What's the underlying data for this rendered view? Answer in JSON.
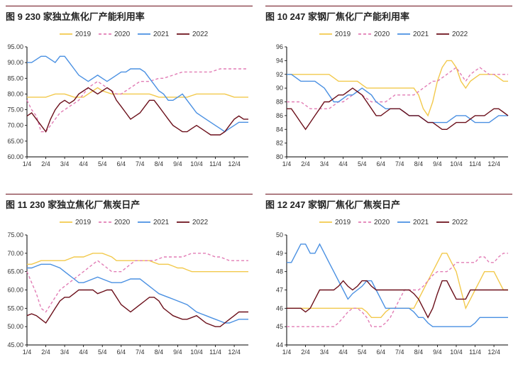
{
  "layout": {
    "container_width": 730,
    "container_height": 541,
    "cols": 2,
    "rows": 2,
    "panel_border_color": "#6b0f1a",
    "title_color": "#222222",
    "title_fontsize": 13,
    "title_fontweight": "bold"
  },
  "legend": {
    "items": [
      {
        "label": "2019",
        "color": "#f2c94c",
        "dash": ""
      },
      {
        "label": "2020",
        "color": "#e27db5",
        "dash": "4 3"
      },
      {
        "label": "2021",
        "color": "#4a90e2",
        "dash": ""
      },
      {
        "label": "2022",
        "color": "#6b0f1a",
        "dash": ""
      }
    ],
    "fontsize": 10,
    "font_color": "#333333"
  },
  "axis_style": {
    "axis_color": "#000000",
    "tick_color": "#000000",
    "tick_fontsize": 9,
    "tick_font_color": "#333333",
    "plot_border": "none",
    "line_width": 1.4
  },
  "x_axis_common": {
    "labels": [
      "1/4",
      "2/4",
      "3/4",
      "4/4",
      "5/4",
      "6/4",
      "7/4",
      "8/4",
      "9/4",
      "10/4",
      "11/4",
      "12/4"
    ],
    "n_points": 48
  },
  "charts": [
    {
      "id": "c9",
      "title": "图 9 230 家独立焦化厂产能利用率",
      "type": "line",
      "ylim": [
        60,
        95
      ],
      "ytick_step": 5,
      "series": {
        "2019": [
          79,
          79,
          79,
          79,
          79,
          79.5,
          80,
          80,
          80,
          79.5,
          79,
          79,
          79,
          80,
          81,
          82,
          81,
          80.5,
          80,
          80,
          80,
          80,
          80,
          80,
          80,
          80,
          80,
          79.5,
          79,
          79,
          79,
          79,
          79,
          79,
          79,
          79.5,
          80,
          80,
          80,
          80,
          80,
          80,
          80,
          79.5,
          79,
          79,
          79,
          79
        ],
        "2020": [
          78,
          75,
          73,
          68,
          68,
          70,
          72,
          74,
          75,
          76,
          77,
          78,
          80,
          82,
          83,
          84,
          83,
          82,
          81,
          80,
          80,
          81,
          82,
          83,
          84,
          84,
          84,
          84.5,
          85,
          85,
          85.5,
          86,
          86.5,
          87,
          87,
          87,
          87,
          87,
          87,
          87,
          87.5,
          88,
          88,
          88,
          88,
          88,
          88,
          88
        ],
        "2021": [
          90,
          90,
          91,
          92,
          92,
          91,
          90,
          92,
          92,
          90,
          88,
          86,
          85,
          84,
          85,
          86,
          85,
          84,
          85,
          86,
          87,
          87,
          88,
          88,
          88,
          87,
          85,
          83,
          81,
          80,
          78,
          78,
          79,
          80,
          78,
          76,
          74,
          73,
          72,
          71,
          70,
          69,
          68,
          69,
          70,
          71,
          71,
          71
        ],
        "2022": [
          73,
          74,
          72,
          70,
          68,
          72,
          75,
          77,
          78,
          77,
          78,
          80,
          81,
          82,
          81,
          80,
          81,
          82,
          81,
          78,
          76,
          74,
          72,
          73,
          74,
          76,
          78,
          78,
          76,
          74,
          72,
          70,
          69,
          68,
          68,
          69,
          70,
          69,
          68,
          67,
          67,
          67,
          68,
          70,
          72,
          73,
          72,
          72
        ]
      }
    },
    {
      "id": "c10",
      "title": "图 10 247 家钢厂焦化厂产能利用率",
      "type": "line",
      "ylim": [
        80,
        96
      ],
      "ytick_step": 2,
      "series": {
        "2019": [
          92,
          92,
          92,
          92,
          92,
          92,
          92,
          92,
          92,
          92,
          91.5,
          91,
          91,
          91,
          91,
          91,
          90.5,
          90,
          90,
          90,
          90,
          90,
          90,
          90,
          90,
          90,
          90,
          90,
          89,
          87,
          86,
          88,
          91,
          93,
          94,
          94,
          93,
          91,
          90,
          91,
          91.5,
          92,
          92,
          92,
          92,
          91.5,
          91,
          91
        ],
        "2020": [
          88,
          88,
          88,
          88,
          87.5,
          87,
          87,
          87,
          87,
          87,
          87.5,
          88,
          88,
          88.5,
          89,
          89.5,
          89,
          88.5,
          88,
          88,
          88,
          88,
          88.5,
          89,
          89,
          89,
          89,
          89,
          89.5,
          90,
          90.5,
          91,
          91,
          91.5,
          92,
          92.5,
          93,
          92,
          91,
          92,
          92.5,
          93,
          92.5,
          92,
          92,
          92,
          92,
          92
        ],
        "2021": [
          92,
          92,
          91.5,
          91,
          91,
          91,
          91,
          90.5,
          90,
          89,
          88,
          88,
          88.5,
          89,
          89,
          89.5,
          90,
          89.5,
          89,
          88,
          87.5,
          87,
          87,
          87,
          87,
          86.5,
          86,
          86,
          86,
          85.5,
          85,
          85,
          85,
          85,
          85,
          85.5,
          86,
          86,
          86,
          85.5,
          85,
          85,
          85,
          85,
          85.5,
          86,
          86,
          86
        ],
        "2022": [
          87,
          87,
          86,
          85,
          84,
          85,
          86,
          87,
          88,
          88,
          88.5,
          89,
          89,
          89.5,
          90,
          89.5,
          89,
          88,
          87,
          86,
          86,
          86.5,
          87,
          87,
          87,
          86.5,
          86,
          86,
          86,
          85.5,
          85,
          85,
          84.5,
          84,
          84,
          84.5,
          85,
          85,
          85,
          85.5,
          86,
          86,
          86,
          86.5,
          87,
          87,
          86.5,
          86
        ]
      }
    },
    {
      "id": "c11",
      "title": "图 11 230 家独立焦化厂焦炭日产",
      "type": "line",
      "ylim": [
        45,
        75
      ],
      "ytick_step": 5,
      "series": {
        "2019": [
          67,
          67,
          67.5,
          68,
          68,
          68,
          68,
          68,
          68,
          68.5,
          69,
          69,
          69,
          69.5,
          70,
          70,
          70,
          69.5,
          69,
          68,
          68,
          68,
          68,
          68,
          68,
          68,
          68,
          67.5,
          67,
          67,
          67,
          66.5,
          66,
          66,
          65.5,
          65,
          65,
          65,
          65,
          65,
          65,
          65,
          65,
          65,
          65,
          65,
          65,
          65
        ],
        "2020": [
          65,
          62,
          59,
          55,
          54,
          56,
          58,
          60,
          61,
          62,
          63,
          64,
          65,
          66,
          67,
          68,
          67,
          66,
          65,
          65,
          65,
          66,
          67,
          68,
          68,
          68,
          68,
          68,
          68.5,
          69,
          69,
          69,
          69,
          69,
          69.5,
          70,
          70,
          70,
          70,
          69.5,
          69,
          69,
          68.5,
          68,
          68,
          68,
          68,
          68
        ],
        "2021": [
          66,
          66,
          66.5,
          67,
          67,
          67,
          66.5,
          66,
          65,
          64,
          63,
          62,
          62,
          62.5,
          63,
          63.5,
          63,
          62.5,
          62,
          62,
          62,
          62.5,
          63,
          63,
          63,
          62,
          61,
          60,
          59,
          58.5,
          58,
          57.5,
          57,
          56.5,
          56,
          55,
          54,
          53.5,
          53,
          52.5,
          52,
          51.5,
          51,
          51,
          51.5,
          52,
          52,
          52
        ],
        "2022": [
          53,
          53.5,
          53,
          52,
          51,
          53,
          55,
          57,
          58,
          58,
          59,
          60,
          60,
          60,
          60,
          59,
          59.5,
          60,
          60,
          58,
          56,
          55,
          54,
          55,
          56,
          57,
          58,
          58,
          57,
          55,
          54,
          53,
          52.5,
          52,
          52,
          52.5,
          53,
          52,
          51,
          50.5,
          50,
          50,
          51,
          52,
          53,
          54,
          54,
          54
        ]
      }
    },
    {
      "id": "c12",
      "title": "图 12 247 家钢厂焦化厂焦炭日产",
      "type": "line",
      "ylim": [
        44,
        50
      ],
      "ytick_step": 1,
      "series": {
        "2019": [
          46,
          46,
          46,
          46,
          46,
          46,
          46,
          46,
          46,
          46,
          46,
          46,
          46,
          46,
          46,
          46,
          46,
          45.8,
          45.5,
          45.5,
          45.5,
          45.8,
          46,
          46,
          46,
          46,
          46,
          46,
          46.5,
          47,
          47.5,
          48,
          48.5,
          49,
          49,
          48.5,
          48,
          47,
          46,
          46.5,
          47,
          47.5,
          48,
          48,
          48,
          47.5,
          47,
          47
        ],
        "2020": [
          45,
          45,
          45,
          45,
          45,
          45,
          45,
          45,
          45,
          45,
          45,
          45.2,
          45.5,
          45.8,
          46,
          46,
          45.8,
          45.5,
          45,
          45,
          45,
          45.2,
          45.5,
          46,
          46.5,
          47,
          47,
          47,
          47,
          47.2,
          47.5,
          47.8,
          48,
          48,
          48,
          48.2,
          48.5,
          48.5,
          48.5,
          48.5,
          48.5,
          48.8,
          48.8,
          48.5,
          48.5,
          48.8,
          49,
          49
        ],
        "2021": [
          48.5,
          48.5,
          49,
          49.5,
          49.5,
          49,
          49,
          49.5,
          49,
          48.5,
          48,
          47.5,
          47,
          46.5,
          46.8,
          47,
          47.2,
          47.5,
          47.5,
          47,
          46.5,
          46,
          46,
          46,
          46,
          46,
          46,
          45.8,
          45.5,
          45.5,
          45.2,
          45,
          45,
          45,
          45,
          45,
          45,
          45,
          45,
          45,
          45.2,
          45.5,
          45.5,
          45.5,
          45.5,
          45.5,
          45.5,
          45.5
        ],
        "2022": [
          46,
          46,
          46,
          46,
          45.8,
          46,
          46.5,
          47,
          47,
          47,
          47,
          47.2,
          47.5,
          47.2,
          47,
          47.2,
          47.5,
          47.5,
          47.2,
          47,
          47,
          47,
          47,
          47,
          47,
          47,
          47,
          46.8,
          46.5,
          46,
          45.5,
          46,
          46.8,
          47.5,
          47.5,
          47,
          46.5,
          46.5,
          46.5,
          47,
          47,
          47,
          47,
          47,
          47,
          47,
          47,
          47
        ]
      }
    }
  ]
}
